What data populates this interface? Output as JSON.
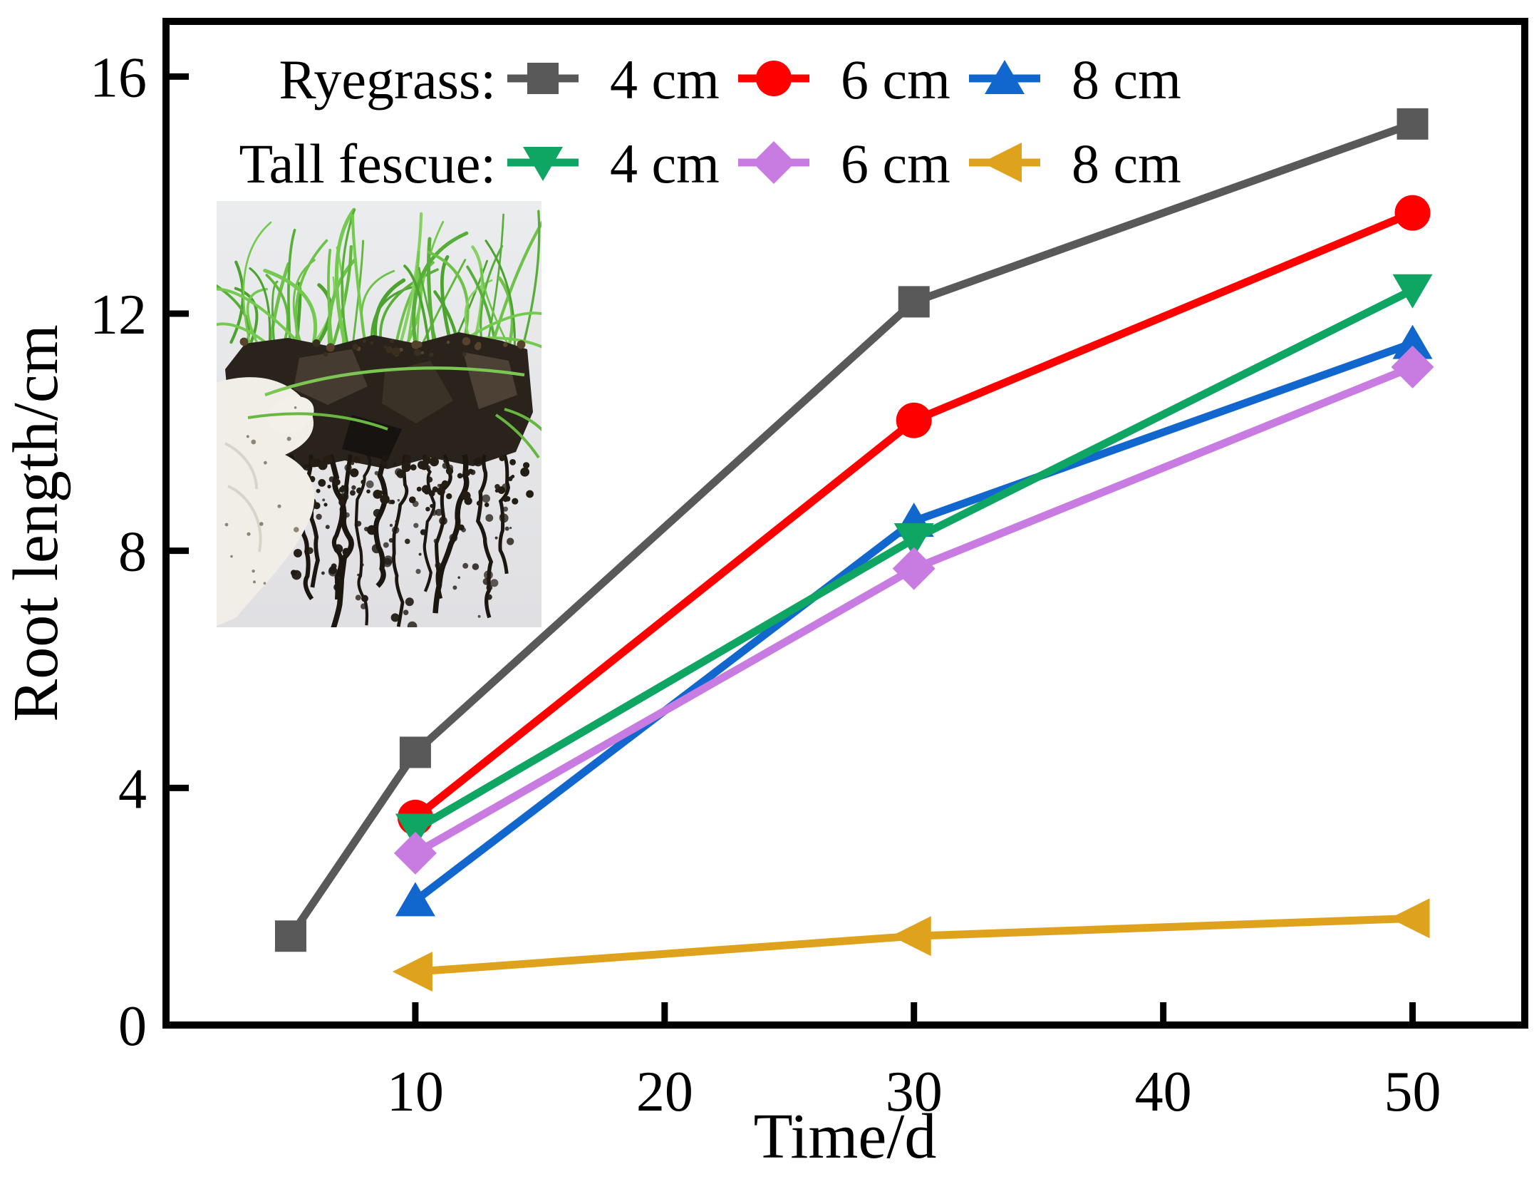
{
  "figure": {
    "background": "#ffffff",
    "axis_color": "#000000"
  },
  "chart_data": {
    "type": "line",
    "title": "",
    "xlabel": "Time/d",
    "ylabel": "Root length/cm",
    "xlim": [
      0,
      54.5
    ],
    "ylim": [
      0,
      16.93
    ],
    "x_ticks": [
      10,
      20,
      30,
      40,
      50
    ],
    "y_ticks": [
      0,
      4,
      8,
      12,
      16
    ],
    "grid": false,
    "legend_position": "top-inside",
    "legend_groups": [
      {
        "label": "Ryegrass:",
        "entries": [
          {
            "label": "4 cm",
            "series": "ryegrass-4cm"
          },
          {
            "label": "6 cm",
            "series": "ryegrass-6cm"
          },
          {
            "label": "8 cm",
            "series": "ryegrass-8cm"
          }
        ]
      },
      {
        "label": "Tall fescue:",
        "entries": [
          {
            "label": "4 cm",
            "series": "tallfescue-4cm"
          },
          {
            "label": "6 cm",
            "series": "tallfescue-6cm"
          },
          {
            "label": "8 cm",
            "series": "tallfescue-8cm"
          }
        ]
      }
    ],
    "series": [
      {
        "id": "ryegrass-4cm",
        "name": "Ryegrass 4 cm",
        "marker": "square",
        "color": "#595959",
        "x": [
          5,
          10,
          30,
          50
        ],
        "y": [
          1.5,
          4.6,
          12.2,
          15.2
        ]
      },
      {
        "id": "ryegrass-6cm",
        "name": "Ryegrass 6 cm",
        "marker": "circle",
        "color": "#fe0000",
        "x": [
          10,
          30,
          50
        ],
        "y": [
          3.5,
          10.2,
          13.7
        ]
      },
      {
        "id": "ryegrass-8cm",
        "name": "Ryegrass 8 cm",
        "marker": "triangle-up",
        "color": "#1267cf",
        "x": [
          10,
          30,
          50
        ],
        "y": [
          2.1,
          8.5,
          11.5
        ]
      },
      {
        "id": "tallfescue-4cm",
        "name": "Tall fescue 4 cm",
        "marker": "triangle-down",
        "color": "#0fa562",
        "x": [
          10,
          30,
          50
        ],
        "y": [
          3.3,
          8.2,
          12.4
        ]
      },
      {
        "id": "tallfescue-6cm",
        "name": "Tall fescue 6 cm",
        "marker": "diamond",
        "color": "#c87ce2",
        "x": [
          10,
          30,
          50
        ],
        "y": [
          2.9,
          7.7,
          11.1
        ]
      },
      {
        "id": "tallfescue-8cm",
        "name": "Tall fescue 8 cm",
        "marker": "triangle-left",
        "color": "#dfa21c",
        "x": [
          10,
          30,
          50
        ],
        "y": [
          0.9,
          1.5,
          1.8
        ]
      }
    ],
    "inset_photo": {
      "alt": "Photograph of a gloved hand holding an excavated soil block with green grass on top and a dense hanging root mass below"
    }
  }
}
